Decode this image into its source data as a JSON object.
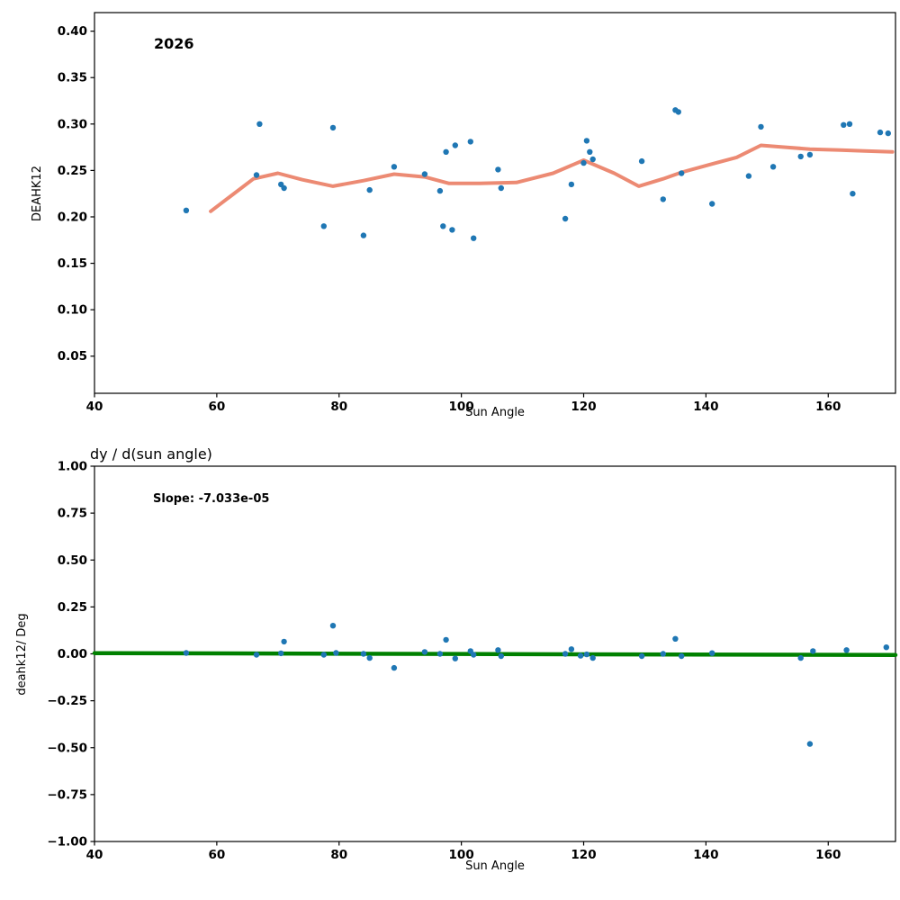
{
  "figure": {
    "background": "#ffffff"
  },
  "chart_data": [
    {
      "type": "scatter",
      "annotation": "2026",
      "xlabel": "Sun Angle",
      "ylabel": "DEAHK12",
      "xlim": [
        40,
        171
      ],
      "ylim": [
        0.01,
        0.42
      ],
      "grid": false,
      "legend": "none",
      "xticks": [
        40,
        60,
        80,
        100,
        120,
        140,
        160
      ],
      "xticklabels": [
        "40",
        "60",
        "80",
        "100",
        "120",
        "140",
        "160"
      ],
      "yticks": [
        0.05,
        0.1,
        0.15,
        0.2,
        0.25,
        0.3,
        0.35,
        0.4
      ],
      "yticklabels": [
        "0.05",
        "0.10",
        "0.15",
        "0.20",
        "0.25",
        "0.30",
        "0.35",
        "0.40"
      ],
      "scatter": {
        "name": "deahk12-points",
        "color": "#1f77b4",
        "points": [
          [
            55,
            0.207
          ],
          [
            66.5,
            0.245
          ],
          [
            67,
            0.3
          ],
          [
            70.5,
            0.235
          ],
          [
            71,
            0.231
          ],
          [
            77.5,
            0.19
          ],
          [
            79,
            0.296
          ],
          [
            84,
            0.18
          ],
          [
            85,
            0.229
          ],
          [
            89,
            0.254
          ],
          [
            94,
            0.246
          ],
          [
            96.5,
            0.228
          ],
          [
            97,
            0.19
          ],
          [
            97.5,
            0.27
          ],
          [
            98.5,
            0.186
          ],
          [
            99,
            0.277
          ],
          [
            101.5,
            0.281
          ],
          [
            102,
            0.177
          ],
          [
            106,
            0.251
          ],
          [
            106.5,
            0.231
          ],
          [
            117,
            0.198
          ],
          [
            118,
            0.235
          ],
          [
            120,
            0.258
          ],
          [
            120.5,
            0.282
          ],
          [
            121,
            0.27
          ],
          [
            121.5,
            0.262
          ],
          [
            129.5,
            0.26
          ],
          [
            133,
            0.219
          ],
          [
            135,
            0.315
          ],
          [
            135.5,
            0.313
          ],
          [
            136,
            0.247
          ],
          [
            141,
            0.214
          ],
          [
            147,
            0.244
          ],
          [
            149,
            0.297
          ],
          [
            151,
            0.254
          ],
          [
            155.5,
            0.265
          ],
          [
            157,
            0.267
          ],
          [
            162.5,
            0.299
          ],
          [
            163.5,
            0.3
          ],
          [
            164,
            0.225
          ],
          [
            168.5,
            0.291
          ],
          [
            169.8,
            0.29
          ]
        ]
      },
      "lines": [
        {
          "name": "smoothed-trend-line",
          "color": "#ec8a73",
          "width": 4,
          "points": [
            [
              59,
              0.206
            ],
            [
              66,
              0.241
            ],
            [
              70,
              0.247
            ],
            [
              74,
              0.24
            ],
            [
              79,
              0.233
            ],
            [
              84,
              0.239
            ],
            [
              89,
              0.246
            ],
            [
              94,
              0.243
            ],
            [
              98,
              0.236
            ],
            [
              103,
              0.236
            ],
            [
              109,
              0.237
            ],
            [
              115,
              0.247
            ],
            [
              120,
              0.261
            ],
            [
              125,
              0.247
            ],
            [
              129,
              0.233
            ],
            [
              133,
              0.241
            ],
            [
              136,
              0.248
            ],
            [
              141,
              0.257
            ],
            [
              145,
              0.264
            ],
            [
              149,
              0.277
            ],
            [
              153,
              0.275
            ],
            [
              157,
              0.273
            ],
            [
              162,
              0.272
            ],
            [
              166,
              0.271
            ],
            [
              170.5,
              0.27
            ]
          ]
        }
      ]
    },
    {
      "type": "scatter",
      "title": "dy / d(sun angle)",
      "annotation": "Slope: -7.033e-05",
      "xlabel": "Sun Angle",
      "ylabel": "deahk12/ Deg",
      "xlim": [
        40,
        171
      ],
      "ylim": [
        -1.0,
        1.0
      ],
      "grid": false,
      "legend": "none",
      "xticks": [
        40,
        60,
        80,
        100,
        120,
        140,
        160
      ],
      "xticklabels": [
        "40",
        "60",
        "80",
        "100",
        "120",
        "140",
        "160"
      ],
      "yticks": [
        -1.0,
        -0.75,
        -0.5,
        -0.25,
        0.0,
        0.25,
        0.5,
        0.75,
        1.0
      ],
      "yticklabels": [
        "−1.00",
        "−0.75",
        "−0.50",
        "−0.25",
        "0.00",
        "0.25",
        "0.50",
        "0.75",
        "1.00"
      ],
      "scatter": {
        "name": "derivative-points",
        "color": "#1f77b4",
        "points": [
          [
            55,
            0.005
          ],
          [
            66.5,
            -0.005
          ],
          [
            70.5,
            0.003
          ],
          [
            71,
            0.065
          ],
          [
            77.5,
            -0.005
          ],
          [
            79,
            0.15
          ],
          [
            79.5,
            0.005
          ],
          [
            84,
            0.0
          ],
          [
            85,
            -0.022
          ],
          [
            89,
            -0.075
          ],
          [
            94,
            0.01
          ],
          [
            96.5,
            0.0
          ],
          [
            97.5,
            0.075
          ],
          [
            99,
            -0.025
          ],
          [
            101.5,
            0.015
          ],
          [
            102,
            -0.005
          ],
          [
            106,
            0.02
          ],
          [
            106.5,
            -0.012
          ],
          [
            117,
            0.0
          ],
          [
            118,
            0.025
          ],
          [
            119.5,
            -0.01
          ],
          [
            120.5,
            -0.003
          ],
          [
            121.5,
            -0.022
          ],
          [
            129.5,
            -0.012
          ],
          [
            133,
            0.0
          ],
          [
            135,
            0.08
          ],
          [
            136,
            -0.012
          ],
          [
            141,
            0.004
          ],
          [
            155.5,
            -0.022
          ],
          [
            157,
            -0.48
          ],
          [
            157.5,
            0.015
          ],
          [
            163,
            0.02
          ],
          [
            169.5,
            0.035
          ]
        ]
      },
      "lines": [
        {
          "name": "slope-fit-line",
          "color": "#008000",
          "width": 4.5,
          "points": [
            [
              40,
              0.004
            ],
            [
              171,
              -0.006
            ]
          ]
        }
      ]
    }
  ]
}
